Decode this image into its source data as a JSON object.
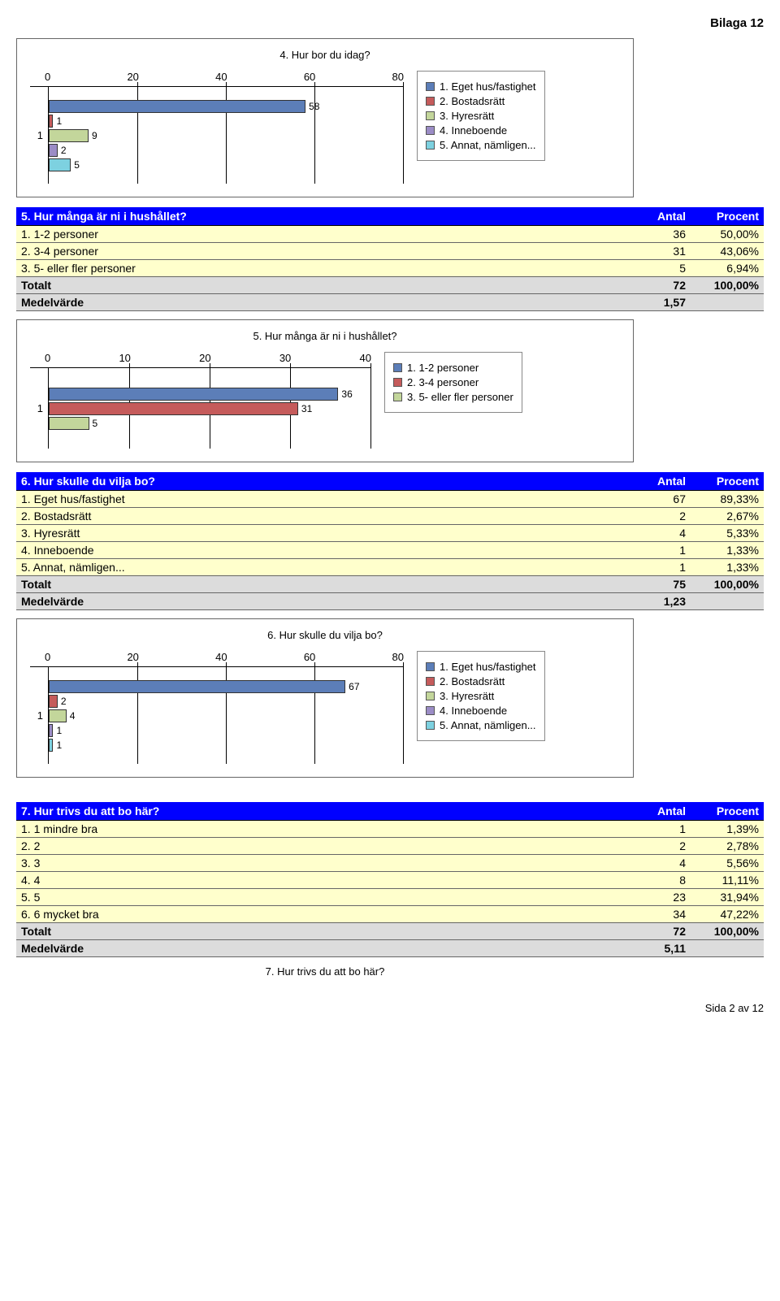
{
  "page_header": "Bilaga 12",
  "page_footer": "Sida 2 av 12",
  "colors": {
    "series": [
      "#5c7eb8",
      "#c55b5b",
      "#c3d69b",
      "#9b8cc6",
      "#7dd1e0"
    ],
    "header_bg": "#0000ff",
    "header_fg": "#ffffff",
    "row_item_bg": "#ffffcc",
    "row_summary_bg": "#dcdcdc"
  },
  "chart4": {
    "title": "4. Hur bor du idag?",
    "xmax": 80,
    "ticks": [
      0,
      20,
      40,
      60,
      80
    ],
    "category_label": "1",
    "legend": [
      "1. Eget hus/fastighet",
      "2. Bostadsrätt",
      "3. Hyresrätt",
      "4. Inneboende",
      "5. Annat, nämligen..."
    ],
    "values": [
      58,
      1,
      9,
      2,
      5
    ]
  },
  "table5": {
    "question": "5. Hur många är ni i hushållet?",
    "col_antal": "Antal",
    "col_procent": "Procent",
    "rows": [
      {
        "label": "1. 1-2 personer",
        "antal": "36",
        "procent": "50,00%"
      },
      {
        "label": "2. 3-4 personer",
        "antal": "31",
        "procent": "43,06%"
      },
      {
        "label": "3. 5- eller fler personer",
        "antal": "5",
        "procent": "6,94%"
      }
    ],
    "total_label": "Totalt",
    "total_antal": "72",
    "total_procent": "100,00%",
    "medel_label": "Medelvärde",
    "medel_value": "1,57"
  },
  "chart5": {
    "title": "5. Hur många är ni i hushållet?",
    "xmax": 40,
    "ticks": [
      0,
      10,
      20,
      30,
      40
    ],
    "category_label": "1",
    "legend": [
      "1. 1-2 personer",
      "2. 3-4 personer",
      "3. 5- eller fler personer"
    ],
    "values": [
      36,
      31,
      5
    ]
  },
  "table6": {
    "question": "6. Hur skulle du vilja bo?",
    "col_antal": "Antal",
    "col_procent": "Procent",
    "rows": [
      {
        "label": "1. Eget hus/fastighet",
        "antal": "67",
        "procent": "89,33%"
      },
      {
        "label": "2. Bostadsrätt",
        "antal": "2",
        "procent": "2,67%"
      },
      {
        "label": "3. Hyresrätt",
        "antal": "4",
        "procent": "5,33%"
      },
      {
        "label": "4. Inneboende",
        "antal": "1",
        "procent": "1,33%"
      },
      {
        "label": "5. Annat, nämligen...",
        "antal": "1",
        "procent": "1,33%"
      }
    ],
    "total_label": "Totalt",
    "total_antal": "75",
    "total_procent": "100,00%",
    "medel_label": "Medelvärde",
    "medel_value": "1,23"
  },
  "chart6": {
    "title": "6. Hur skulle du vilja bo?",
    "xmax": 80,
    "ticks": [
      0,
      20,
      40,
      60,
      80
    ],
    "category_label": "1",
    "legend": [
      "1. Eget hus/fastighet",
      "2. Bostadsrätt",
      "3. Hyresrätt",
      "4. Inneboende",
      "5. Annat, nämligen..."
    ],
    "values": [
      67,
      2,
      4,
      1,
      1
    ]
  },
  "table7": {
    "question": "7. Hur trivs du att bo här?",
    "col_antal": "Antal",
    "col_procent": "Procent",
    "rows": [
      {
        "label": "1. 1 mindre bra",
        "antal": "1",
        "procent": "1,39%"
      },
      {
        "label": "2. 2",
        "antal": "2",
        "procent": "2,78%"
      },
      {
        "label": "3. 3",
        "antal": "4",
        "procent": "5,56%"
      },
      {
        "label": "4. 4",
        "antal": "8",
        "procent": "11,11%"
      },
      {
        "label": "5. 5",
        "antal": "23",
        "procent": "31,94%"
      },
      {
        "label": "6. 6 mycket bra",
        "antal": "34",
        "procent": "47,22%"
      }
    ],
    "total_label": "Totalt",
    "total_antal": "72",
    "total_procent": "100,00%",
    "medel_label": "Medelvärde",
    "medel_value": "5,11"
  },
  "chart7": {
    "title": "7. Hur trivs du att bo här?"
  }
}
